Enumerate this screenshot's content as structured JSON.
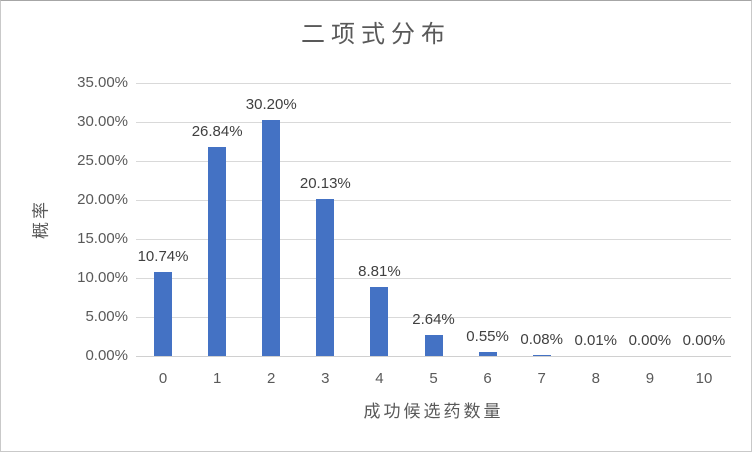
{
  "chart_data": {
    "type": "bar",
    "title": "二项式分布",
    "xlabel": "成功候选药数量",
    "ylabel": "概率",
    "categories": [
      "0",
      "1",
      "2",
      "3",
      "4",
      "5",
      "6",
      "7",
      "8",
      "9",
      "10"
    ],
    "values": [
      10.74,
      26.84,
      30.2,
      20.13,
      8.81,
      2.64,
      0.55,
      0.08,
      0.01,
      0.0,
      0.0
    ],
    "data_labels": [
      "10.74%",
      "26.84%",
      "30.20%",
      "20.13%",
      "8.81%",
      "2.64%",
      "0.55%",
      "0.08%",
      "0.01%",
      "0.00%",
      "0.00%"
    ],
    "y_ticks": [
      {
        "value": 0,
        "label": "0.00%"
      },
      {
        "value": 5,
        "label": "5.00%"
      },
      {
        "value": 10,
        "label": "10.00%"
      },
      {
        "value": 15,
        "label": "15.00%"
      },
      {
        "value": 20,
        "label": "20.00%"
      },
      {
        "value": 25,
        "label": "25.00%"
      },
      {
        "value": 30,
        "label": "30.00%"
      },
      {
        "value": 35,
        "label": "35.00%"
      }
    ],
    "ylim": [
      0,
      35
    ],
    "grid": true,
    "legend_position": "none",
    "bar_color": "#4472C4",
    "colors": {
      "title_text": "#595959",
      "axis_text": "#595959",
      "data_label_text": "#404040",
      "gridline": "#D9D9D9",
      "border": "#C9C9C9"
    }
  }
}
